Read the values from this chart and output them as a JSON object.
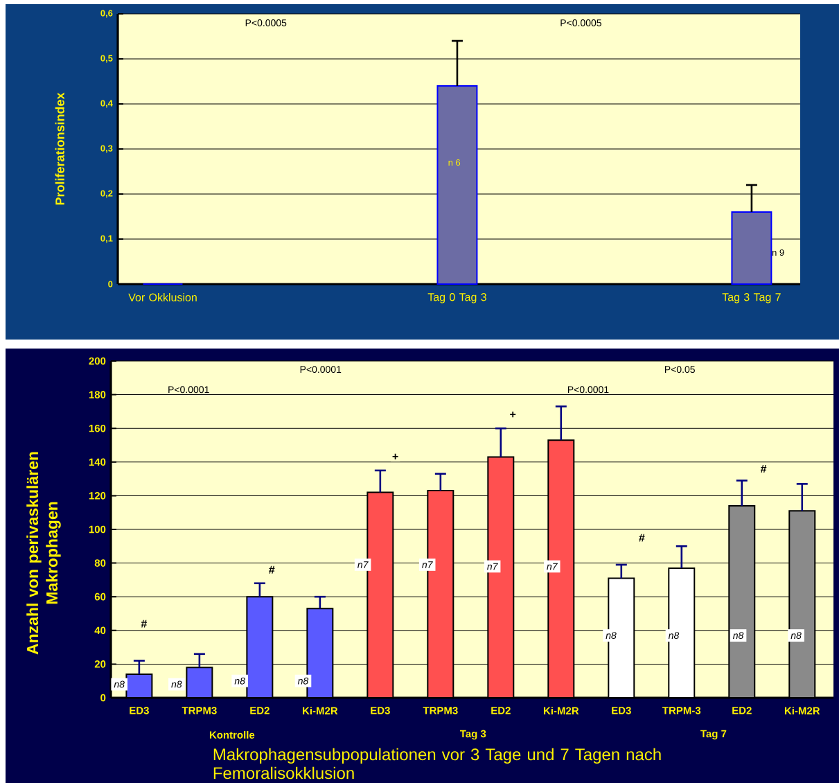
{
  "chart_data": [
    {
      "type": "bar",
      "ylabel": "Proliferationsindex",
      "categories": [
        "Vor Okklusion",
        "Tag 0 Tag 3",
        "Tag 3 Tag 7"
      ],
      "values": [
        0,
        0.44,
        0.16
      ],
      "errors": [
        null,
        0.1,
        0.06
      ],
      "color": "#6c6ca4",
      "ylim": [
        0,
        0.6
      ],
      "yticks": [
        0,
        {
          "value": 0.1,
          "label": "0,1"
        },
        {
          "value": 0.2,
          "label": "0,2"
        },
        {
          "value": 0.3,
          "label": "0,3"
        },
        {
          "value": 0.4,
          "label": "0,4"
        },
        {
          "value": 0.5,
          "label": "0,5"
        },
        {
          "value": 0.6,
          "label": "0,6"
        }
      ],
      "grid": "y",
      "annotations": [
        "P<0.0005",
        "P<0.0005",
        "n 6",
        "n 9"
      ]
    },
    {
      "type": "bar",
      "ylabel": "Anzahl von perivaskulären Makrophagen",
      "xlabel": "Makrophagensubpopulationen  vor 3 Tage und 7 Tagen nach Femoralisokklusion",
      "categories": [
        "ED3",
        "TRPM3",
        "ED2",
        "Ki-M2R",
        "ED3",
        "TRPM3",
        "ED2",
        "Ki-M2R",
        "ED3",
        "TRPM-3",
        "ED2",
        "Ki-M2R"
      ],
      "values": [
        14,
        18,
        60,
        53,
        122,
        123,
        143,
        153,
        71,
        77,
        114,
        111
      ],
      "errors": [
        8,
        8,
        8,
        7,
        13,
        10,
        17,
        20,
        8,
        13,
        15,
        16
      ],
      "colors": [
        "#5a5aff",
        "#5a5aff",
        "#5a5aff",
        "#5a5aff",
        "#ff5050",
        "#ff5050",
        "#ff5050",
        "#ff5050",
        "#ffffff",
        "#ffffff",
        "#8a8a8a",
        "#8a8a8a"
      ],
      "ylim": [
        0,
        200
      ],
      "yticks": [
        0,
        20,
        40,
        60,
        80,
        100,
        120,
        140,
        160,
        180,
        200
      ],
      "grid": "y",
      "annotations": [
        "P<0.0001",
        "P<0.0001",
        "P<0.0001",
        "P<0.05",
        "#",
        "#",
        "+",
        "+",
        "#",
        "#",
        "n8",
        "n8",
        "n8",
        "n8",
        "n7",
        "n7",
        "n7",
        "n7",
        "n8",
        "n8",
        "n8",
        "n8",
        "Kontrolle",
        "Tag 3",
        "Tag 7"
      ]
    }
  ]
}
